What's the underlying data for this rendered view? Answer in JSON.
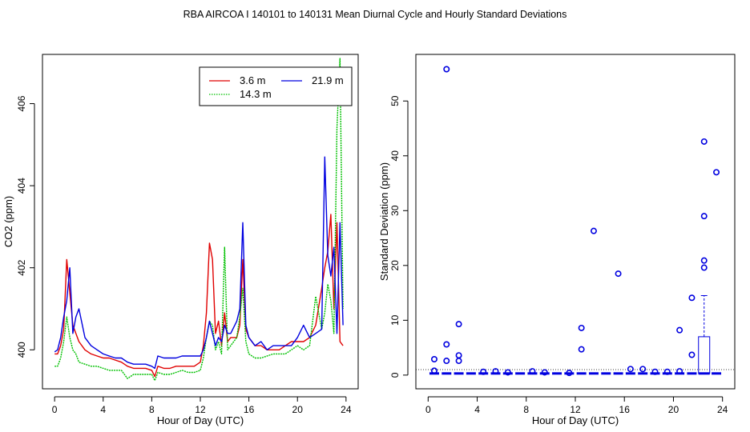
{
  "figure_title": "RBA   AIRCOA I   140101 to 140131   Mean Diurnal Cycle and Hourly Standard Deviations",
  "colors": {
    "red": "#e00000",
    "green": "#00c000",
    "blue": "#0000e0",
    "axis": "#000000"
  },
  "chart_data": [
    {
      "type": "line",
      "xlabel": "Hour of Day (UTC)",
      "ylabel": "CO2 (ppm)",
      "xlim": [
        -1,
        25
      ],
      "ylim": [
        399.05,
        407.2
      ],
      "xticks": [
        0,
        4,
        8,
        12,
        16,
        20,
        24
      ],
      "yticks": [
        400,
        402,
        404,
        406
      ],
      "legend": {
        "placement": "top-right",
        "entries": [
          {
            "label": "3.6 m",
            "color": "red",
            "style": "solid"
          },
          {
            "label": "21.9 m",
            "color": "blue",
            "style": "solid"
          },
          {
            "label": "14.3 m",
            "color": "green",
            "style": "dotted"
          }
        ]
      },
      "series": [
        {
          "name": "3.6 m",
          "color": "red",
          "x": [
            0,
            0.25,
            0.5,
            0.75,
            1,
            1.25,
            1.5,
            1.75,
            2,
            2.5,
            3,
            3.5,
            4,
            4.5,
            5,
            5.5,
            6,
            6.5,
            7,
            7.5,
            8,
            8.25,
            8.5,
            9,
            9.5,
            10,
            10.5,
            11,
            11.5,
            12,
            12.25,
            12.5,
            12.75,
            13,
            13.25,
            13.5,
            13.75,
            14,
            14.25,
            14.5,
            15,
            15.25,
            15.5,
            15.75,
            16,
            16.5,
            17,
            17.5,
            18,
            18.5,
            19,
            19.5,
            20,
            20.5,
            21,
            21.5,
            22,
            22.25,
            22.5,
            22.75,
            23,
            23.25,
            23.5,
            23.75
          ],
          "y": [
            399.9,
            399.9,
            400.1,
            400.5,
            402.2,
            401.4,
            400.6,
            400.4,
            400.2,
            400.0,
            399.9,
            399.85,
            399.8,
            399.8,
            399.75,
            399.7,
            399.6,
            399.55,
            399.55,
            399.55,
            399.5,
            399.35,
            399.6,
            399.55,
            399.55,
            399.6,
            399.6,
            399.6,
            399.6,
            399.7,
            400.1,
            400.9,
            402.6,
            402.2,
            400.4,
            400.7,
            400.1,
            400.9,
            400.2,
            400.3,
            400.3,
            400.6,
            402.2,
            400.5,
            400.3,
            400.1,
            400.1,
            400.0,
            400.0,
            400.0,
            400.1,
            400.2,
            400.2,
            400.2,
            400.3,
            400.6,
            401.5,
            402.0,
            402.4,
            403.3,
            401.0,
            403.1,
            400.2,
            400.1
          ]
        },
        {
          "name": "14.3 m",
          "color": "green",
          "x": [
            0,
            0.25,
            0.5,
            0.75,
            1,
            1.25,
            1.5,
            1.75,
            2,
            2.5,
            3,
            3.5,
            4,
            4.5,
            5,
            5.5,
            6,
            6.5,
            7,
            7.5,
            8,
            8.25,
            8.5,
            9,
            9.5,
            10,
            10.5,
            11,
            11.5,
            12,
            12.25,
            12.5,
            12.75,
            13,
            13.25,
            13.5,
            13.75,
            14,
            14.25,
            14.5,
            15,
            15.25,
            15.5,
            15.75,
            16,
            16.5,
            17,
            17.5,
            18,
            18.5,
            19,
            19.5,
            20,
            20.5,
            21,
            21.5,
            22,
            22.25,
            22.5,
            22.75,
            23,
            23.25,
            23.5,
            23.75
          ],
          "y": [
            399.6,
            399.6,
            399.8,
            400.2,
            400.8,
            400.3,
            400.0,
            399.9,
            399.7,
            399.65,
            399.6,
            399.6,
            399.55,
            399.5,
            399.5,
            399.5,
            399.3,
            399.4,
            399.4,
            399.4,
            399.4,
            399.25,
            399.45,
            399.4,
            399.4,
            399.45,
            399.5,
            399.45,
            399.45,
            399.5,
            399.8,
            400.3,
            400.7,
            400.6,
            400.0,
            400.2,
            399.9,
            402.5,
            400.0,
            400.1,
            400.3,
            400.8,
            401.5,
            400.2,
            399.9,
            399.8,
            399.8,
            399.85,
            399.9,
            399.9,
            399.9,
            400.0,
            400.1,
            400.0,
            400.1,
            401.3,
            400.5,
            400.9,
            401.6,
            401.2,
            400.4,
            405.4,
            407.1,
            401.0
          ]
        },
        {
          "name": "21.9 m",
          "color": "blue",
          "x": [
            0,
            0.25,
            0.5,
            0.75,
            1,
            1.25,
            1.5,
            1.75,
            2,
            2.5,
            3,
            3.5,
            4,
            4.5,
            5,
            5.5,
            6,
            6.5,
            7,
            7.5,
            8,
            8.25,
            8.5,
            9,
            9.5,
            10,
            10.5,
            11,
            11.5,
            12,
            12.25,
            12.5,
            12.75,
            13,
            13.25,
            13.5,
            13.75,
            14,
            14.25,
            14.5,
            15,
            15.25,
            15.5,
            15.75,
            16,
            16.5,
            17,
            17.5,
            18,
            18.5,
            19,
            19.5,
            20,
            20.5,
            21,
            21.5,
            22,
            22.25,
            22.5,
            22.75,
            23,
            23.25,
            23.5,
            23.75
          ],
          "y": [
            399.95,
            400.0,
            400.3,
            400.8,
            401.2,
            402.0,
            400.4,
            400.8,
            401.0,
            400.3,
            400.1,
            400.0,
            399.9,
            399.85,
            399.8,
            399.8,
            399.7,
            399.65,
            399.65,
            399.65,
            399.6,
            399.55,
            399.85,
            399.8,
            399.8,
            399.8,
            399.85,
            399.85,
            399.85,
            399.85,
            400.0,
            400.3,
            400.7,
            400.4,
            400.1,
            400.3,
            400.2,
            400.6,
            400.4,
            400.4,
            400.7,
            401.0,
            403.1,
            400.6,
            400.3,
            400.1,
            400.2,
            400.0,
            400.1,
            400.1,
            400.1,
            400.1,
            400.3,
            400.6,
            400.3,
            400.4,
            400.5,
            404.7,
            402.3,
            401.8,
            402.5,
            400.4,
            403.1,
            400.6
          ]
        }
      ]
    },
    {
      "type": "boxplot",
      "xlabel": "Hour of Day (UTC)",
      "ylabel": "Standard Deviation (ppm)",
      "xlim": [
        -1,
        25
      ],
      "ylim": [
        -2.5,
        58.5
      ],
      "xticks": [
        0,
        4,
        8,
        12,
        16,
        20,
        24
      ],
      "yticks": [
        0,
        10,
        20,
        30,
        40,
        50
      ],
      "reference_line": 1.0,
      "boxes": [
        {
          "hour": 22.5,
          "q1": 0.3,
          "median": 0.3,
          "q3": 7.0,
          "whisker_low": 0.3,
          "whisker_high": 14.5
        }
      ],
      "outliers": [
        {
          "hour": 0.5,
          "values": [
            2.9,
            0.8
          ]
        },
        {
          "hour": 1.5,
          "values": [
            55.8,
            5.6,
            2.6
          ]
        },
        {
          "hour": 2.5,
          "values": [
            9.3,
            3.6,
            2.6
          ]
        },
        {
          "hour": 4.5,
          "values": [
            0.6
          ]
        },
        {
          "hour": 5.5,
          "values": [
            0.7
          ]
        },
        {
          "hour": 6.5,
          "values": [
            0.5
          ]
        },
        {
          "hour": 8.5,
          "values": [
            0.7
          ]
        },
        {
          "hour": 9.5,
          "values": [
            0.5
          ]
        },
        {
          "hour": 11.5,
          "values": [
            0.4
          ]
        },
        {
          "hour": 12.5,
          "values": [
            8.6,
            4.7
          ]
        },
        {
          "hour": 13.5,
          "values": [
            26.3
          ]
        },
        {
          "hour": 15.5,
          "values": [
            18.5
          ]
        },
        {
          "hour": 16.5,
          "values": [
            1.1
          ]
        },
        {
          "hour": 17.5,
          "values": [
            1.1
          ]
        },
        {
          "hour": 18.5,
          "values": [
            0.6
          ]
        },
        {
          "hour": 19.5,
          "values": [
            0.6
          ]
        },
        {
          "hour": 20.5,
          "values": [
            8.2,
            0.7
          ]
        },
        {
          "hour": 21.5,
          "values": [
            14.1,
            3.7
          ]
        },
        {
          "hour": 22.5,
          "values": [
            42.6,
            29.0,
            20.9,
            19.6
          ]
        },
        {
          "hour": 23.5,
          "values": [
            37.0
          ]
        }
      ],
      "baseline_hours": [
        0.5,
        1.5,
        2.5,
        3.5,
        4.5,
        5.5,
        6.5,
        7.5,
        8.5,
        9.5,
        10.5,
        11.5,
        12.5,
        13.5,
        14.5,
        15.5,
        16.5,
        17.5,
        18.5,
        19.5,
        20.5,
        21.5,
        23.5
      ],
      "baseline_value": 0.3
    }
  ]
}
